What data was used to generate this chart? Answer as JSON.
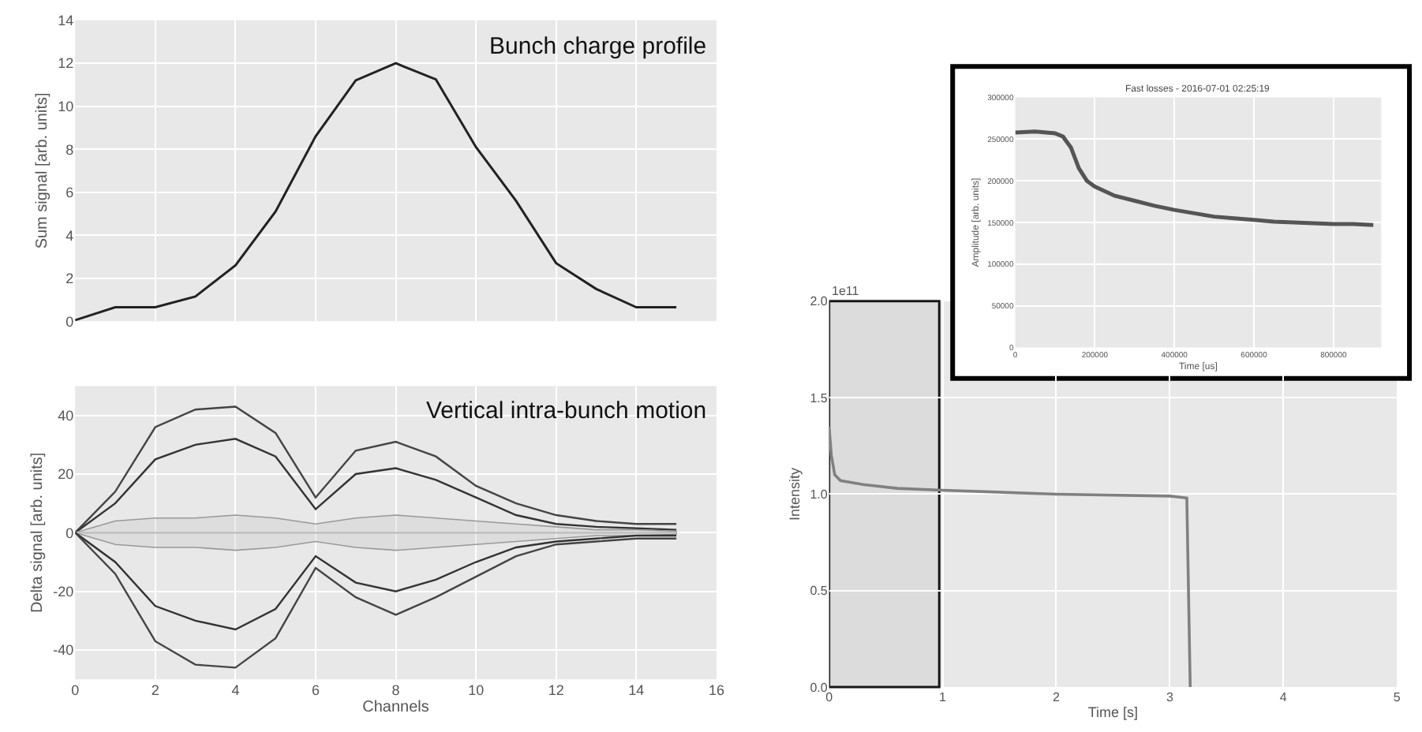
{
  "chart_data": [
    {
      "type": "line",
      "annotations": [
        "Bunch charge profile"
      ],
      "ylabel": "Sum signal [arb. units]",
      "xlim": [
        0,
        16
      ],
      "xticks": [
        0,
        2,
        4,
        6,
        8,
        10,
        12,
        14,
        16
      ],
      "ylim": [
        0,
        14
      ],
      "yticks": [
        0,
        2,
        4,
        6,
        8,
        10,
        12,
        14
      ],
      "tick_labels": "y",
      "grid": true,
      "x": [
        0,
        1,
        2,
        3,
        4,
        5,
        6,
        7,
        8,
        9,
        10,
        11,
        12,
        13,
        14,
        15
      ],
      "series": [
        {
          "color": "#222222",
          "values": [
            0.05,
            0.65,
            0.65,
            1.15,
            2.6,
            5.1,
            8.6,
            11.2,
            12.0,
            11.25,
            8.1,
            5.6,
            2.7,
            1.5,
            0.65,
            0.65
          ]
        }
      ]
    },
    {
      "type": "line",
      "annotations": [
        "Vertical intra-bunch motion"
      ],
      "xlabel": "Channels",
      "ylabel": "Delta signal [arb. units]",
      "xlim": [
        0,
        16
      ],
      "xticks": [
        0,
        2,
        4,
        6,
        8,
        10,
        12,
        14,
        16
      ],
      "ylim": [
        -50,
        50
      ],
      "yticks": [
        -40,
        -20,
        0,
        20,
        40
      ],
      "grid": true,
      "x": [
        0,
        1,
        2,
        3,
        4,
        5,
        6,
        7,
        8,
        9,
        10,
        11,
        12,
        13,
        14,
        15
      ],
      "series": [
        {
          "color": "#444444",
          "values": [
            0,
            14,
            36,
            42,
            43,
            34,
            12,
            28,
            31,
            26,
            16,
            10,
            6,
            4,
            3,
            3
          ]
        },
        {
          "color": "#333333",
          "values": [
            0,
            10,
            25,
            30,
            32,
            26,
            8,
            20,
            22,
            18,
            12,
            6,
            3,
            2,
            1.5,
            1
          ]
        },
        {
          "color": "#bbbbbb",
          "values": [
            0,
            0,
            0,
            0,
            0,
            0,
            0,
            0,
            0,
            0,
            0,
            0,
            0,
            0,
            0,
            0
          ],
          "upper": [
            0,
            4,
            5,
            5,
            6,
            5,
            3,
            5,
            6,
            5,
            4,
            3,
            2,
            1,
            1,
            0.5
          ],
          "lower": [
            0,
            -4,
            -5,
            -5,
            -6,
            -5,
            -3,
            -5,
            -6,
            -5,
            -4,
            -3,
            -2,
            -1,
            -1,
            -0.5
          ]
        },
        {
          "color": "#333333",
          "values": [
            0,
            -10,
            -25,
            -30,
            -33,
            -26,
            -8,
            -17,
            -20,
            -16,
            -10,
            -5,
            -3,
            -2,
            -1,
            -1
          ]
        },
        {
          "color": "#444444",
          "values": [
            0,
            -14,
            -37,
            -45,
            -46,
            -36,
            -12,
            -22,
            -28,
            -22,
            -15,
            -8,
            -4,
            -3,
            -2,
            -2
          ]
        }
      ]
    },
    {
      "type": "line",
      "annotations": [
        "1e11"
      ],
      "xlabel": "Time [s]",
      "ylabel": "Intensity",
      "xlim": [
        0,
        5
      ],
      "xticks": [
        0,
        1,
        2,
        3,
        4,
        5
      ],
      "ylim": [
        0,
        2.0
      ],
      "yticks": [
        {
          "value": 0,
          "label": "0.0"
        },
        0.5,
        {
          "value": 1,
          "label": "1.0"
        },
        1.5,
        {
          "value": 2,
          "label": "2.0"
        }
      ],
      "grid": true,
      "bands": [
        {
          "axis": "x",
          "from": 0,
          "to": 0.97,
          "color": "#000000"
        }
      ],
      "series": [
        {
          "color": "#808080",
          "x": [
            0,
            0.02,
            0.05,
            0.1,
            0.3,
            0.6,
            1,
            2,
            3,
            3.15,
            3.18
          ],
          "values": [
            1.35,
            1.2,
            1.1,
            1.07,
            1.05,
            1.03,
            1.02,
            1.0,
            0.99,
            0.98,
            0.0
          ]
        }
      ]
    },
    {
      "type": "line",
      "title": "Fast losses - 2016-07-01 02:25:19",
      "xlabel": "Time [us]",
      "ylabel": "Amplitude [arb. units]",
      "xlim": [
        0,
        920000
      ],
      "xticks": [
        0,
        200000,
        400000,
        600000,
        800000
      ],
      "ylim": [
        0,
        300000
      ],
      "yticks": [
        0,
        50000,
        100000,
        150000,
        200000,
        250000,
        300000
      ],
      "grid": true,
      "series": [
        {
          "color": "#555555",
          "x": [
            0,
            50000,
            100000,
            120000,
            140000,
            160000,
            180000,
            200000,
            250000,
            300000,
            350000,
            400000,
            450000,
            500000,
            550000,
            600000,
            650000,
            700000,
            750000,
            800000,
            850000,
            900000
          ],
          "values": [
            258000,
            259000,
            257000,
            253000,
            240000,
            215000,
            200000,
            193000,
            182000,
            176000,
            170000,
            165000,
            161000,
            157000,
            155000,
            153000,
            151000,
            150000,
            149000,
            148000,
            148000,
            147000
          ]
        }
      ]
    }
  ]
}
